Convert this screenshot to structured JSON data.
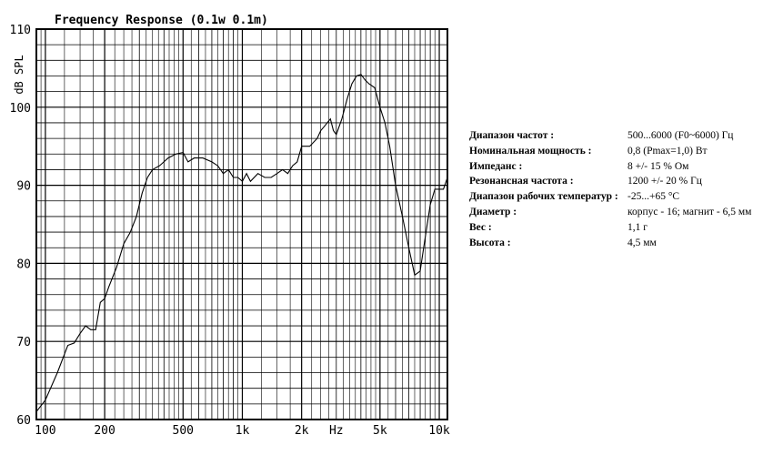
{
  "chart_data": {
    "type": "line",
    "title": "Frequency Response  (0.1w 0.1m)",
    "ylabel": "dB SPL",
    "x_scale": "log",
    "xlim": [
      90,
      11000
    ],
    "ylim": [
      60,
      110
    ],
    "grid": true,
    "y_ticks": [
      60,
      70,
      80,
      90,
      100,
      110
    ],
    "x_tick_labels": [
      {
        "value": 100,
        "label": "100"
      },
      {
        "value": 200,
        "label": "200"
      },
      {
        "value": 500,
        "label": "500"
      },
      {
        "value": 1000,
        "label": "1k"
      },
      {
        "value": 2000,
        "label": "2k"
      },
      {
        "value": 3000,
        "label": "Hz"
      },
      {
        "value": 5000,
        "label": "5k"
      },
      {
        "value": 10000,
        "label": "10k"
      }
    ],
    "series": [
      {
        "values": [
          [
            90,
            61.0
          ],
          [
            100,
            62.5
          ],
          [
            115,
            66.0
          ],
          [
            130,
            69.5
          ],
          [
            140,
            69.8
          ],
          [
            150,
            71.0
          ],
          [
            160,
            72.0
          ],
          [
            170,
            71.5
          ],
          [
            180,
            71.5
          ],
          [
            190,
            75.0
          ],
          [
            200,
            75.5
          ],
          [
            210,
            77.0
          ],
          [
            230,
            79.5
          ],
          [
            250,
            82.5
          ],
          [
            270,
            84.0
          ],
          [
            290,
            86.0
          ],
          [
            310,
            89.0
          ],
          [
            330,
            91.0
          ],
          [
            350,
            92.0
          ],
          [
            380,
            92.5
          ],
          [
            420,
            93.5
          ],
          [
            460,
            94.0
          ],
          [
            500,
            94.2
          ],
          [
            530,
            93.0
          ],
          [
            570,
            93.5
          ],
          [
            630,
            93.5
          ],
          [
            700,
            93.0
          ],
          [
            750,
            92.5
          ],
          [
            800,
            91.5
          ],
          [
            850,
            92.0
          ],
          [
            900,
            91.0
          ],
          [
            950,
            91.0
          ],
          [
            1000,
            90.5
          ],
          [
            1050,
            91.5
          ],
          [
            1100,
            90.5
          ],
          [
            1200,
            91.5
          ],
          [
            1300,
            91.0
          ],
          [
            1400,
            91.0
          ],
          [
            1500,
            91.5
          ],
          [
            1600,
            92.0
          ],
          [
            1700,
            91.5
          ],
          [
            1800,
            92.5
          ],
          [
            1900,
            93.0
          ],
          [
            2000,
            95.0
          ],
          [
            2200,
            95.0
          ],
          [
            2400,
            96.0
          ],
          [
            2500,
            97.0
          ],
          [
            2600,
            97.5
          ],
          [
            2800,
            98.5
          ],
          [
            2900,
            97.0
          ],
          [
            3000,
            96.5
          ],
          [
            3200,
            98.5
          ],
          [
            3400,
            101.0
          ],
          [
            3600,
            103.0
          ],
          [
            3800,
            104.0
          ],
          [
            4000,
            104.2
          ],
          [
            4200,
            103.5
          ],
          [
            4400,
            103.0
          ],
          [
            4700,
            102.5
          ],
          [
            5000,
            100.0
          ],
          [
            5300,
            98.0
          ],
          [
            5600,
            95.0
          ],
          [
            6000,
            90.0
          ],
          [
            6500,
            86.0
          ],
          [
            7000,
            82.0
          ],
          [
            7500,
            78.5
          ],
          [
            8000,
            79.0
          ],
          [
            8500,
            83.5
          ],
          [
            9000,
            87.5
          ],
          [
            9500,
            89.5
          ],
          [
            10000,
            89.5
          ],
          [
            10500,
            89.5
          ],
          [
            11000,
            91.0
          ]
        ]
      }
    ]
  },
  "specs": [
    {
      "label": "Диапазон частот :",
      "value": "500...6000 (F0~6000) Гц"
    },
    {
      "label": "Номинальная мощность :",
      "value": "0,8 (Pmax=1,0) Вт"
    },
    {
      "label": "Импеданс :",
      "value": "8 +/- 15 % Ом"
    },
    {
      "label": "Резонансная частота :",
      "value": "1200 +/- 20 % Гц"
    },
    {
      "label": "Диапазон рабочих температур :",
      "value": "-25...+65 °C"
    },
    {
      "label": "Диаметр :",
      "value": "корпус - 16; магнит - 6,5 мм"
    },
    {
      "label": "Вес :",
      "value": "1,1 г"
    },
    {
      "label": "Высота :",
      "value": "4,5 мм"
    }
  ]
}
